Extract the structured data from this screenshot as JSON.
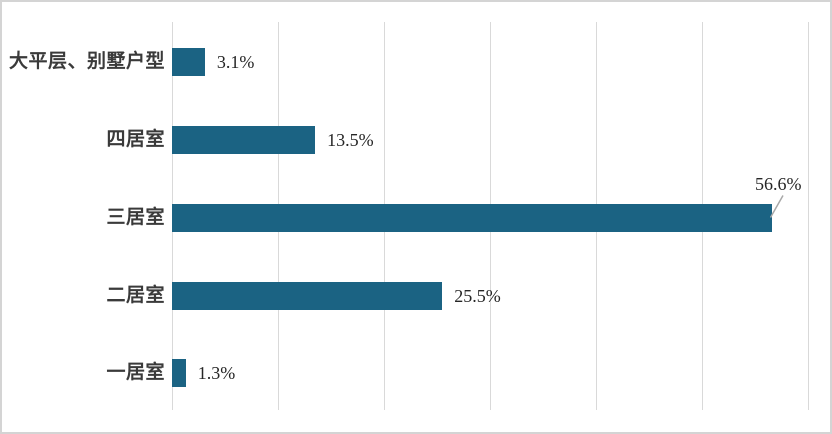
{
  "chart_data": {
    "type": "bar",
    "orientation": "horizontal",
    "title": "",
    "categories": [
      "大平层、别墅户型",
      "四居室",
      "三居室",
      "二居室",
      "一居室"
    ],
    "values": [
      3.1,
      13.5,
      56.6,
      25.5,
      1.3
    ],
    "value_labels": [
      "3.1%",
      "13.5%",
      "25.5%",
      "1.3%"
    ],
    "callout": {
      "index": 2,
      "label": "56.6%"
    },
    "xlabel": "",
    "ylabel": "",
    "xlim": [
      0,
      60
    ],
    "gridline_step": 10,
    "grid": true,
    "legend": false,
    "colors": {
      "bar": "#1B6383",
      "gridline": "#D9D9D9",
      "category_text": "#3A3A3A",
      "value_text": "#262626",
      "leader_line": "#A8A8A8",
      "frame_border": "#D4D4D4",
      "background": "#FFFFFF"
    }
  }
}
